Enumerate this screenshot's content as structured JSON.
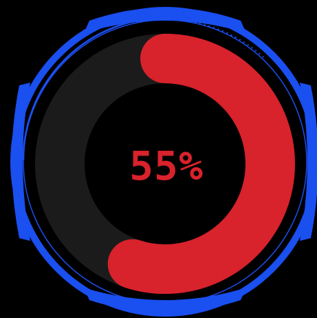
{
  "gauge": {
    "value": 0.55,
    "label": "55%",
    "colors": {
      "background": "#000000",
      "track": "#1b1b1b",
      "progress": "#d8222c",
      "frame": "#1a4ff0",
      "text": "#d8222c"
    }
  }
}
